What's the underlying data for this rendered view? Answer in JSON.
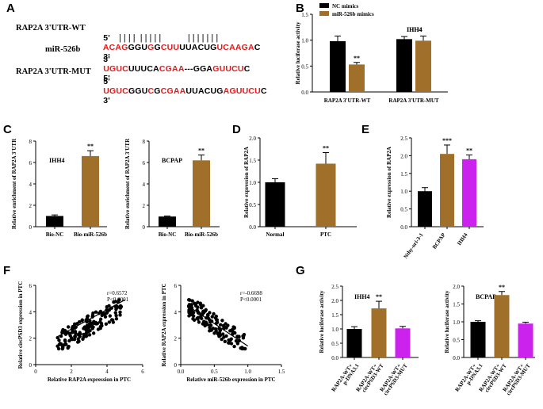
{
  "panels": {
    "A": "A",
    "B": "B",
    "C": "C",
    "D": "D",
    "E": "E",
    "F": "F",
    "G": "G"
  },
  "sequences": {
    "wt_label": "RAP2A 3'UTR-WT",
    "mir_label": "miR-526b",
    "mut_label": "RAP2A 3'UTR-MUT",
    "wt_prefix": "5'",
    "wt_segments": [
      [
        "ACAG",
        "r"
      ],
      [
        "GGU",
        "k"
      ],
      [
        "G",
        "r"
      ],
      [
        "G",
        "k"
      ],
      [
        "CUU",
        "r"
      ],
      [
        "UUACUG",
        "k"
      ],
      [
        "UCAAGA",
        "r"
      ],
      [
        "C",
        "k"
      ]
    ],
    "wt_suffix": "3'",
    "pair_marks": "| | | |  | | | | |           | | | | | | |",
    "mir_prefix": "3'",
    "mir_segments": [
      [
        "UGUC",
        "r"
      ],
      [
        "UUUCA",
        "k"
      ],
      [
        "CGAA",
        "r"
      ],
      [
        "---GGA",
        "k"
      ],
      [
        "GUUCU",
        "r"
      ],
      [
        "C",
        "k"
      ]
    ],
    "mir_suffix": "5'",
    "mut_prefix": "5'",
    "mut_segments": [
      [
        "UGUC",
        "r"
      ],
      [
        "GGU",
        "k"
      ],
      [
        "C",
        "r"
      ],
      [
        "G",
        "k"
      ],
      [
        "CGAA",
        "r"
      ],
      [
        "UUACUG",
        "k"
      ],
      [
        "AGUUCU",
        "r"
      ],
      [
        "C",
        "k"
      ]
    ],
    "mut_suffix": "3'"
  },
  "colors": {
    "black": "#000000",
    "brown": "#a0702a",
    "purple": "#cc22ee"
  },
  "chart_data": [
    {
      "id": "B",
      "type": "bar",
      "title": "IHH4",
      "ylabel": "Relative luciferase activity",
      "ylim": [
        0,
        1.5
      ],
      "yticks": [
        "0.0",
        "0.5",
        "1.0",
        "1.5"
      ],
      "categories": [
        "RAP2A 3'UTR-WT",
        "RAP2A 3'UTR-MUT"
      ],
      "series": [
        {
          "name": "NC mimics",
          "color": "#000000",
          "values": [
            0.98,
            1.02
          ],
          "errors": [
            0.1,
            0.05
          ]
        },
        {
          "name": "miR-526b mimics",
          "color": "#a0702a",
          "values": [
            0.53,
            0.99
          ],
          "errors": [
            0.04,
            0.09
          ]
        }
      ],
      "annotations": [
        "**",
        ""
      ]
    },
    {
      "id": "C1",
      "type": "bar",
      "title": "IHH4",
      "ylabel": "Relative enrichment of RAP2A 3'UTR",
      "ylim": [
        0,
        8
      ],
      "yticks": [
        "0",
        "2",
        "4",
        "6",
        "8"
      ],
      "categories": [
        "Bio-NC",
        "Bio-miR-526b"
      ],
      "values": [
        1.0,
        6.6
      ],
      "errors": [
        0.1,
        0.5
      ],
      "colors": [
        "#000000",
        "#a0702a"
      ],
      "annotations": [
        "",
        "**"
      ]
    },
    {
      "id": "C2",
      "type": "bar",
      "title": "BCPAP",
      "ylabel": "Relative enrichment of RAP2A 3'UTR",
      "ylim": [
        0,
        8
      ],
      "yticks": [
        "0",
        "2",
        "4",
        "6",
        "8"
      ],
      "categories": [
        "Bio-NC",
        "Bio-miR-526b"
      ],
      "values": [
        0.95,
        6.2
      ],
      "errors": [
        0.05,
        0.5
      ],
      "colors": [
        "#000000",
        "#a0702a"
      ],
      "annotations": [
        "",
        "**"
      ]
    },
    {
      "id": "D",
      "type": "bar",
      "title": "",
      "ylabel": "Relative expression of RAP2A",
      "ylim": [
        0,
        2.0
      ],
      "yticks": [
        "0.0",
        "0.5",
        "1.0",
        "1.5",
        "2.0"
      ],
      "categories": [
        "Normal",
        "PTC"
      ],
      "values": [
        1.0,
        1.42
      ],
      "errors": [
        0.08,
        0.25
      ],
      "colors": [
        "#000000",
        "#a0702a"
      ],
      "annotations": [
        "",
        "**"
      ]
    },
    {
      "id": "E",
      "type": "bar",
      "title": "",
      "ylabel": "Relative expression of RAP2A",
      "ylim": [
        0,
        2.5
      ],
      "yticks": [
        "0.0",
        "0.5",
        "1.0",
        "1.5",
        "2.0",
        "2.5"
      ],
      "categories": [
        "Nthy-ori-3-1",
        "BCPAP",
        "IHH4"
      ],
      "values": [
        1.0,
        2.05,
        1.9
      ],
      "errors": [
        0.1,
        0.25,
        0.12
      ],
      "colors": [
        "#000000",
        "#a0702a",
        "#cc22ee"
      ],
      "annotations": [
        "",
        "***",
        "**"
      ]
    },
    {
      "id": "F1",
      "type": "scatter",
      "ylabel": "Relative circPSD3 expression in PTC",
      "xlabel": "Relative RAP2A expression in PTC",
      "xlim": [
        0,
        6
      ],
      "ylim": [
        0,
        6
      ],
      "xticks": [
        "0",
        "2",
        "4",
        "6"
      ],
      "yticks": [
        "0",
        "2",
        "4",
        "6"
      ],
      "stats": [
        "r=0.6572",
        "P<0.0001"
      ],
      "trend": "positive"
    },
    {
      "id": "F2",
      "type": "scatter",
      "ylabel": "Relative RAP2A expression in PTC",
      "xlabel": "Relative miR-526b expression in PTC",
      "xlim": [
        0,
        1.5
      ],
      "ylim": [
        0,
        6
      ],
      "xticks": [
        "0.0",
        "0.5",
        "1.0",
        "1.5"
      ],
      "yticks": [
        "0",
        "2",
        "4",
        "6"
      ],
      "stats": [
        "r=-0.6698",
        "P<0.0001"
      ],
      "trend": "negative"
    },
    {
      "id": "G1",
      "type": "bar",
      "title": "IHH4",
      "ylabel": "Relative luciferase activity",
      "ylim": [
        0,
        2.5
      ],
      "yticks": [
        "0.0",
        "0.5",
        "1.0",
        "1.5",
        "2.0",
        "2.5"
      ],
      "categories": [
        "RAP2A-WT+ p-DNA3.1",
        "RAP2A-WT+ circPSD3-WT",
        "RAP2A-WT+ circPSD3-MUT"
      ],
      "values": [
        1.0,
        1.72,
        1.02
      ],
      "errors": [
        0.08,
        0.25,
        0.07
      ],
      "colors": [
        "#000000",
        "#a0702a",
        "#cc22ee"
      ],
      "annotations": [
        "",
        "**",
        ""
      ]
    },
    {
      "id": "G2",
      "type": "bar",
      "title": "BCPAP",
      "ylabel": "Relative luciferase activity",
      "ylim": [
        0,
        2.0
      ],
      "yticks": [
        "0.0",
        "0.5",
        "1.0",
        "1.5",
        "2.0"
      ],
      "categories": [
        "RAP2A-WT+ p-DNA3.1",
        "RAP2A-WT+ circPSD3-WT",
        "RAP2A-WT+ circPSD3-MUT"
      ],
      "values": [
        1.0,
        1.75,
        0.95
      ],
      "errors": [
        0.03,
        0.1,
        0.04
      ],
      "colors": [
        "#000000",
        "#a0702a",
        "#cc22ee"
      ],
      "annotations": [
        "",
        "**",
        ""
      ]
    }
  ]
}
